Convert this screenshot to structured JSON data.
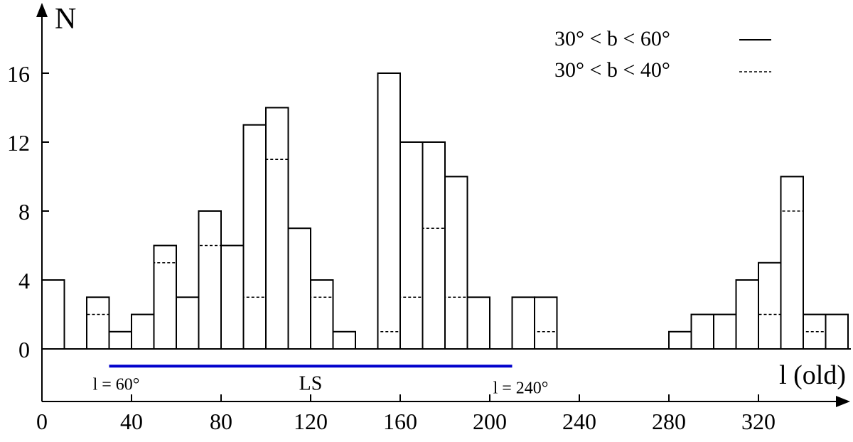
{
  "chart_data": {
    "type": "histogram",
    "ylabel": "N",
    "xlabel": "l (old)",
    "xlim": [
      0,
      360
    ],
    "ylim": [
      0,
      16
    ],
    "x_ticks": [
      0,
      40,
      80,
      120,
      160,
      200,
      240,
      280,
      320
    ],
    "y_ticks": [
      0,
      4,
      8,
      12,
      16
    ],
    "bin_width": 10,
    "bin_starts": [
      0,
      10,
      20,
      30,
      40,
      50,
      60,
      70,
      80,
      90,
      100,
      110,
      120,
      130,
      140,
      150,
      160,
      170,
      180,
      190,
      200,
      210,
      220,
      230,
      240,
      250,
      260,
      270,
      280,
      290,
      300,
      310,
      320,
      330,
      340,
      350
    ],
    "series": [
      {
        "name": "30° < b < 60°",
        "style": "solid",
        "values": [
          4,
          0,
          3,
          1,
          2,
          6,
          3,
          8,
          6,
          13,
          14,
          7,
          4,
          1,
          0,
          16,
          12,
          12,
          10,
          3,
          0,
          3,
          3,
          0,
          0,
          0,
          0,
          0,
          1,
          2,
          2,
          4,
          5,
          10,
          2,
          2
        ]
      },
      {
        "name": "30° < b < 40°",
        "style": "dashed",
        "values": [
          4,
          0,
          2,
          1,
          2,
          5,
          3,
          6,
          0,
          3,
          11,
          7,
          3,
          0,
          0,
          1,
          3,
          7,
          3,
          0,
          0,
          0,
          1,
          0,
          0,
          0,
          0,
          0,
          0,
          0,
          0,
          0,
          2,
          8,
          1,
          0
        ]
      }
    ],
    "legend_position": "top-right",
    "grid": false,
    "annotation": {
      "label": "LS",
      "x_range": [
        30,
        210
      ],
      "y": -1,
      "color": "#0000cc",
      "start_label": "l = 60°",
      "end_label": "l = 240°"
    }
  }
}
